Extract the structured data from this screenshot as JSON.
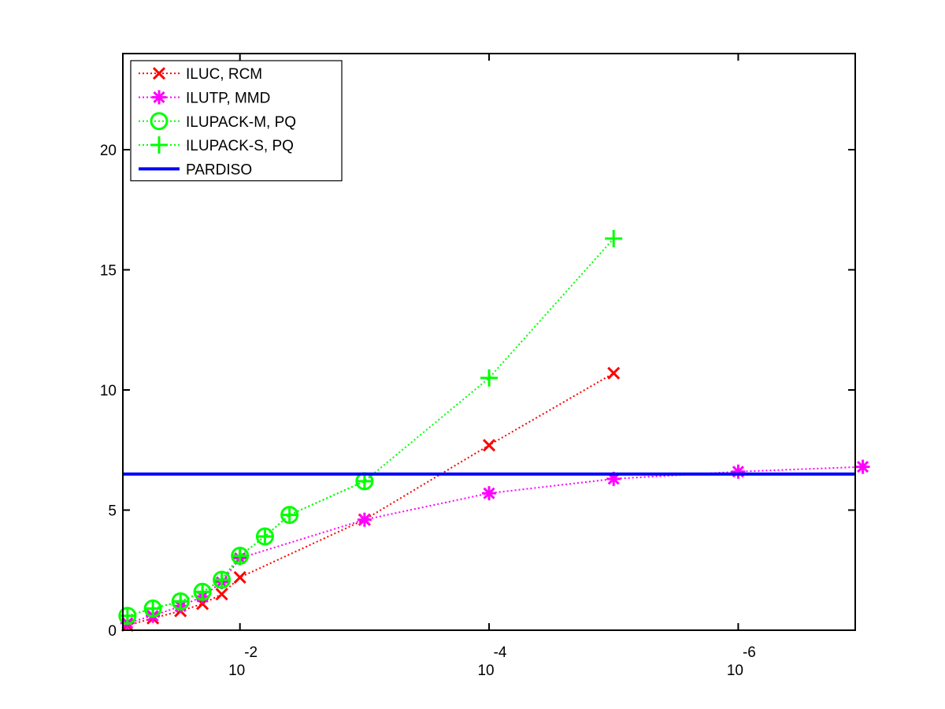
{
  "chart_data": {
    "type": "line",
    "title": "",
    "xlabel": "",
    "ylabel": "",
    "x_scale": "log-reversed",
    "xlim": [
      0.0871,
      1.15e-07
    ],
    "ylim": [
      0,
      24
    ],
    "grid": false,
    "legend_position": "top-left",
    "x_ticks": [
      {
        "value": 0.01,
        "base": "10",
        "exponent": "-2"
      },
      {
        "value": 0.0001,
        "base": "10",
        "exponent": "-4"
      },
      {
        "value": 1e-06,
        "base": "10",
        "exponent": "-6"
      }
    ],
    "y_ticks": [
      {
        "value": 0,
        "label": "0"
      },
      {
        "value": 5,
        "label": "5"
      },
      {
        "value": 10,
        "label": "10"
      },
      {
        "value": 15,
        "label": "15"
      },
      {
        "value": 20,
        "label": "20"
      }
    ],
    "series": [
      {
        "name": "ILUC, RCM",
        "color": "#ff0000",
        "marker": "x",
        "line": "dotted",
        "points": [
          [
            0.08,
            0.2
          ],
          [
            0.05,
            0.5
          ],
          [
            0.03,
            0.8
          ],
          [
            0.02,
            1.1
          ],
          [
            0.014,
            1.5
          ],
          [
            0.01,
            2.2
          ],
          [
            0.001,
            4.6
          ],
          [
            0.0001,
            7.7
          ],
          [
            1e-05,
            10.7
          ]
        ]
      },
      {
        "name": "ILUTP, MMD",
        "color": "#ff00ff",
        "marker": "asterisk",
        "line": "dotted",
        "points": [
          [
            0.08,
            0.3
          ],
          [
            0.05,
            0.6
          ],
          [
            0.03,
            1.0
          ],
          [
            0.02,
            1.4
          ],
          [
            0.014,
            2.0
          ],
          [
            0.01,
            3.0
          ],
          [
            0.001,
            4.6
          ],
          [
            0.0001,
            5.7
          ],
          [
            1e-05,
            6.3
          ],
          [
            1e-06,
            6.6
          ],
          [
            1e-07,
            6.8
          ]
        ]
      },
      {
        "name": "ILUPACK-M, PQ",
        "color": "#00ff00",
        "marker": "circle",
        "line": "dotted",
        "points": [
          [
            0.08,
            0.6
          ],
          [
            0.05,
            0.9
          ],
          [
            0.03,
            1.2
          ],
          [
            0.02,
            1.6
          ],
          [
            0.014,
            2.1
          ],
          [
            0.01,
            3.1
          ],
          [
            0.0063,
            3.9
          ],
          [
            0.004,
            4.8
          ],
          [
            0.001,
            6.2
          ]
        ]
      },
      {
        "name": "ILUPACK-S, PQ",
        "color": "#00ff00",
        "marker": "plus",
        "line": "dotted",
        "points": [
          [
            0.08,
            0.6
          ],
          [
            0.05,
            0.9
          ],
          [
            0.03,
            1.2
          ],
          [
            0.02,
            1.6
          ],
          [
            0.014,
            2.1
          ],
          [
            0.01,
            3.1
          ],
          [
            0.0063,
            3.9
          ],
          [
            0.004,
            4.8
          ],
          [
            0.001,
            6.2
          ],
          [
            0.0001,
            10.5
          ],
          [
            1e-05,
            16.3
          ]
        ]
      },
      {
        "name": "PARDISO",
        "color": "#0000ff",
        "marker": "none",
        "line": "solid",
        "points": [
          [
            0.0871,
            6.5
          ],
          [
            1.15e-07,
            6.5
          ]
        ]
      }
    ]
  }
}
